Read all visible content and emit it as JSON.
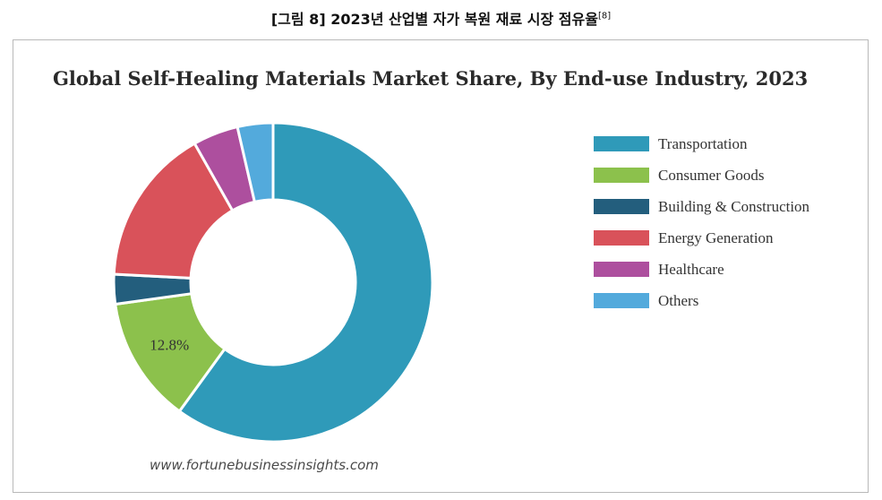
{
  "caption": {
    "text": "[그림 8] 2023년 산업별 자가 복원 재료 시장 점유율",
    "ref": "[8]"
  },
  "source_text": "www.fortunebusinessinsights.com",
  "chart_data": {
    "type": "pie",
    "donut": true,
    "title": "Global Self-Healing Materials Market Share, By End-use Industry, 2023",
    "legend_position": "right",
    "categories": [
      "Transportation",
      "Consumer Goods",
      "Building & Construction",
      "Energy Generation",
      "Healthcare",
      "Others"
    ],
    "values": [
      60.0,
      12.8,
      3.0,
      16.0,
      4.6,
      3.6
    ],
    "colors": [
      "#2f9ab9",
      "#8cc14c",
      "#235e7d",
      "#d9525a",
      "#ad4f9e",
      "#53aadc"
    ],
    "data_labels": [
      null,
      "12.8%",
      null,
      null,
      null,
      null
    ]
  }
}
